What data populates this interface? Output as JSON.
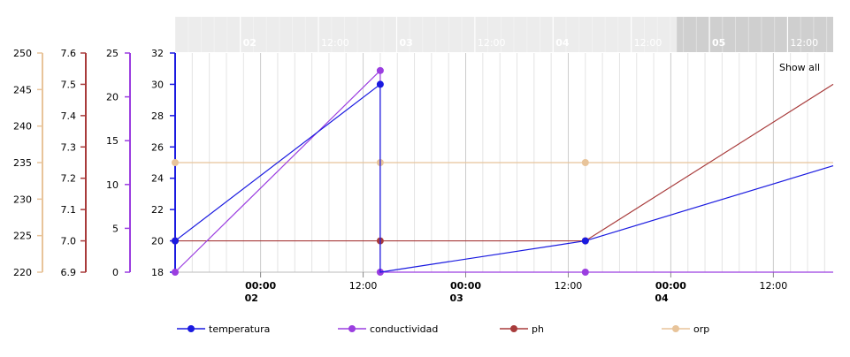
{
  "chart_data": {
    "type": "line",
    "x_unit": "date-hour",
    "x_ticks": [
      {
        "x": "02 00:00",
        "primary": "00:00",
        "secondary": "02"
      },
      {
        "x": "02 12:00",
        "primary": "12:00",
        "secondary": ""
      },
      {
        "x": "03 00:00",
        "primary": "00:00",
        "secondary": "03"
      },
      {
        "x": "03 12:00",
        "primary": "12:00",
        "secondary": ""
      },
      {
        "x": "04 00:00",
        "primary": "00:00",
        "secondary": "04"
      },
      {
        "x": "04 12:00",
        "primary": "12:00",
        "secondary": ""
      }
    ],
    "band_labels": [
      {
        "x": "02 00:00",
        "label": "02",
        "bold": true
      },
      {
        "x": "02 12:00",
        "label": "12:00",
        "bold": false
      },
      {
        "x": "03 00:00",
        "label": "03",
        "bold": true
      },
      {
        "x": "03 12:00",
        "label": "12:00",
        "bold": false
      },
      {
        "x": "04 00:00",
        "label": "04",
        "bold": true
      },
      {
        "x": "04 12:00",
        "label": "12:00",
        "bold": false
      },
      {
        "x": "05 00:00",
        "label": "05",
        "bold": true
      },
      {
        "x": "05 12:00",
        "label": "12:00",
        "bold": false
      }
    ],
    "x_range": [
      "01 14:00",
      "04 19:00"
    ],
    "band_range": [
      "01 14:00",
      "05 19:00"
    ],
    "band_selected": [
      "04 19:00",
      "05 19:00"
    ],
    "grid": true,
    "show_all_label": "Show all",
    "axes": [
      {
        "id": "orp",
        "ticks": [
          220,
          225,
          230,
          235,
          240,
          245,
          250
        ],
        "range": [
          220,
          250
        ],
        "color": "#e8c49a"
      },
      {
        "id": "ph",
        "ticks": [
          "6.9",
          "7.0",
          "7.1",
          "7.2",
          "7.3",
          "7.4",
          "7.5",
          "7.6"
        ],
        "range": [
          6.9,
          7.6
        ],
        "color": "#a83b3b"
      },
      {
        "id": "conductividad",
        "ticks": [
          0,
          5,
          10,
          15,
          20,
          25
        ],
        "range": [
          0,
          25
        ],
        "color": "#9b3ee0"
      },
      {
        "id": "temperatura",
        "ticks": [
          18,
          20,
          22,
          24,
          26,
          28,
          30,
          32
        ],
        "range": [
          18,
          32
        ],
        "color": "#1a1ae0"
      }
    ],
    "series": [
      {
        "name": "temperatura",
        "axis": "temperatura",
        "color": "#1a1ae0",
        "points": [
          [
            "01 14:00",
            20
          ],
          [
            "02 14:00",
            30
          ],
          [
            "02 14:00",
            18
          ],
          [
            "03 14:00",
            20
          ],
          [
            "04 19:00",
            24.8
          ]
        ],
        "markers": [
          [
            "01 14:00",
            20
          ],
          [
            "02 14:00",
            30
          ],
          [
            "03 14:00",
            20
          ]
        ]
      },
      {
        "name": "conductividad",
        "axis": "conductividad",
        "color": "#9b3ee0",
        "points": [
          [
            "01 14:00",
            0
          ],
          [
            "02 14:00",
            23
          ],
          [
            "02 14:00",
            0
          ],
          [
            "04 19:00",
            0
          ]
        ],
        "markers": [
          [
            "01 14:00",
            0
          ],
          [
            "02 14:00",
            23
          ],
          [
            "02 14:00",
            0
          ],
          [
            "03 14:00",
            0
          ]
        ]
      },
      {
        "name": "ph",
        "axis": "ph",
        "color": "#a83b3b",
        "points": [
          [
            "01 14:00",
            7.0
          ],
          [
            "03 14:00",
            7.0
          ],
          [
            "04 19:00",
            7.5
          ]
        ],
        "markers": [
          [
            "01 14:00",
            7.0
          ],
          [
            "02 14:00",
            7.0
          ],
          [
            "03 14:00",
            7.0
          ]
        ]
      },
      {
        "name": "orp",
        "axis": "orp",
        "color": "#e8c49a",
        "points": [
          [
            "01 14:00",
            235
          ],
          [
            "04 19:00",
            235
          ]
        ],
        "markers": [
          [
            "01 14:00",
            235
          ],
          [
            "02 14:00",
            235
          ],
          [
            "03 14:00",
            235
          ]
        ]
      }
    ],
    "legend": {
      "position": "bottom",
      "items": [
        "temperatura",
        "conductividad",
        "ph",
        "orp"
      ]
    }
  }
}
